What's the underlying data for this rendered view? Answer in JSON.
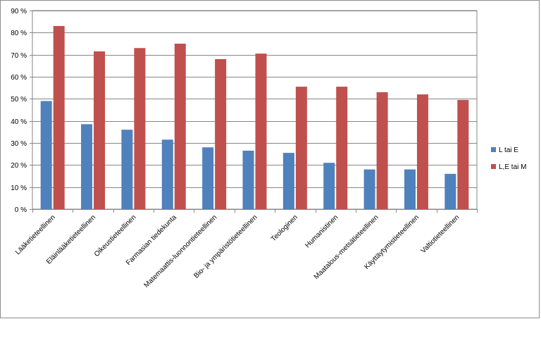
{
  "chart_data": {
    "type": "bar",
    "title": "",
    "xlabel": "",
    "ylabel": "",
    "ylim": [
      0,
      90
    ],
    "y_ticks": [
      0,
      10,
      20,
      30,
      40,
      50,
      60,
      70,
      80,
      90
    ],
    "y_tick_suffix": " %",
    "grid": true,
    "legend_position": "right",
    "categories": [
      "Lääketieteellinen",
      "Eläinlääketieteellinen",
      "Oikeustieteellinen",
      "Farmasian tiedekunta",
      "Matemaattis-luonnontieteellinen",
      "Bio- ja ympäristötieteellinen",
      "Teologinen",
      "Humanistinen",
      "Maatalous-metsätieteellinen",
      "Käyttäytymistieteellinen",
      "Valtiotieteellinen"
    ],
    "series": [
      {
        "name": "L tai E",
        "color": "#4f81bd",
        "values": [
          49,
          38.5,
          36,
          31.5,
          28,
          26.5,
          25.5,
          21,
          18,
          18,
          16
        ]
      },
      {
        "name": "L,E tai M",
        "color": "#c0504d",
        "values": [
          83,
          71.5,
          73,
          75,
          68,
          70.5,
          55.5,
          55.5,
          53,
          52,
          49.5
        ]
      }
    ]
  }
}
